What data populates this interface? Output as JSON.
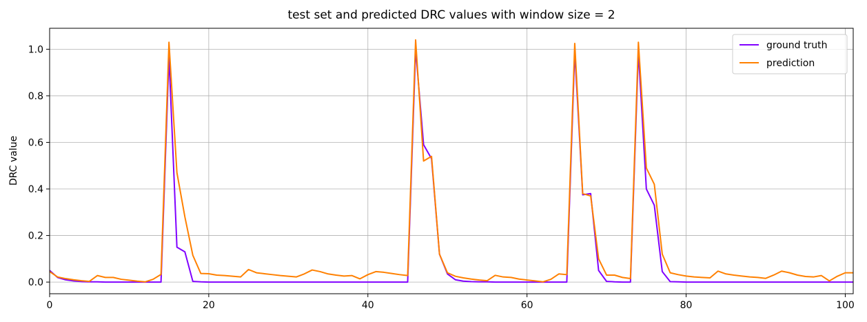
{
  "chart_data": {
    "type": "line",
    "title": "test set and predicted DRC values with window size = 2",
    "xlabel": "",
    "ylabel": "DRC value",
    "xlim": [
      0,
      101
    ],
    "ylim": [
      -0.05,
      1.09
    ],
    "xticks": [
      0,
      20,
      40,
      60,
      80,
      100
    ],
    "xtick_labels": [
      "0",
      "20",
      "40",
      "60",
      "80",
      "100"
    ],
    "yticks": [
      0.0,
      0.2,
      0.4,
      0.6,
      0.8,
      1.0
    ],
    "ytick_labels": [
      "0.0",
      "0.2",
      "0.4",
      "0.6",
      "0.8",
      "1.0"
    ],
    "grid": true,
    "legend_position": "top-right",
    "series": [
      {
        "name": "ground truth",
        "color": "#8000ff",
        "x": [
          0,
          1,
          2,
          3,
          4,
          5,
          6,
          7,
          8,
          9,
          10,
          11,
          12,
          13,
          14,
          15,
          16,
          17,
          18,
          19,
          20,
          21,
          22,
          23,
          24,
          25,
          26,
          27,
          28,
          29,
          30,
          31,
          32,
          33,
          34,
          35,
          36,
          37,
          38,
          39,
          40,
          41,
          42,
          43,
          44,
          45,
          46,
          47,
          48,
          49,
          50,
          51,
          52,
          53,
          54,
          55,
          56,
          57,
          58,
          59,
          60,
          61,
          62,
          63,
          64,
          65,
          66,
          67,
          68,
          69,
          70,
          71,
          72,
          73,
          74,
          75,
          76,
          77,
          78,
          79,
          80,
          81,
          82,
          83,
          84,
          85,
          86,
          87,
          88,
          89,
          90,
          91,
          92,
          93,
          94,
          95,
          96,
          97,
          98,
          99,
          100,
          101
        ],
        "values": [
          0.05,
          0.02,
          0.01,
          0.005,
          0.002,
          0.001,
          0.001,
          0,
          0,
          0,
          0,
          0,
          0,
          0,
          0,
          0.97,
          0.15,
          0.13,
          0.003,
          0.001,
          0,
          0,
          0,
          0,
          0,
          0,
          0,
          0,
          0,
          0,
          0,
          0,
          0,
          0,
          0,
          0,
          0,
          0,
          0,
          0,
          0,
          0,
          0,
          0,
          0,
          0,
          1.0,
          0.59,
          0.53,
          0.12,
          0.035,
          0.01,
          0.004,
          0.002,
          0.001,
          0.001,
          0,
          0,
          0,
          0,
          0,
          0,
          0,
          0,
          0,
          0,
          0.99,
          0.375,
          0.38,
          0.05,
          0.003,
          0.001,
          0,
          0,
          0.99,
          0.4,
          0.33,
          0.045,
          0.002,
          0.001,
          0,
          0,
          0,
          0,
          0,
          0,
          0,
          0,
          0,
          0,
          0,
          0,
          0,
          0,
          0,
          0,
          0,
          0,
          0,
          0,
          0,
          0
        ]
      },
      {
        "name": "prediction",
        "color": "#ff8000",
        "x": [
          0,
          1,
          2,
          3,
          4,
          5,
          6,
          7,
          8,
          9,
          10,
          11,
          12,
          13,
          14,
          15,
          16,
          17,
          18,
          19,
          20,
          21,
          22,
          23,
          24,
          25,
          26,
          27,
          28,
          29,
          30,
          31,
          32,
          33,
          34,
          35,
          36,
          37,
          38,
          39,
          40,
          41,
          42,
          43,
          44,
          45,
          46,
          47,
          48,
          49,
          50,
          51,
          52,
          53,
          54,
          55,
          56,
          57,
          58,
          59,
          60,
          61,
          62,
          63,
          64,
          65,
          66,
          67,
          68,
          69,
          70,
          71,
          72,
          73,
          74,
          75,
          76,
          77,
          78,
          79,
          80,
          81,
          82,
          83,
          84,
          85,
          86,
          87,
          88,
          89,
          90,
          91,
          92,
          93,
          94,
          95,
          96,
          97,
          98,
          99,
          100,
          101
        ],
        "values": [
          0.045,
          0.022,
          0.015,
          0.01,
          0.006,
          0.003,
          0.028,
          0.02,
          0.02,
          0.012,
          0.008,
          0.004,
          0.001,
          0.012,
          0.033,
          1.03,
          0.47,
          0.28,
          0.115,
          0.037,
          0.036,
          0.03,
          0.028,
          0.025,
          0.022,
          0.054,
          0.04,
          0.036,
          0.032,
          0.028,
          0.025,
          0.022,
          0.035,
          0.052,
          0.045,
          0.035,
          0.03,
          0.026,
          0.028,
          0.014,
          0.032,
          0.045,
          0.042,
          0.037,
          0.032,
          0.028,
          1.04,
          0.52,
          0.54,
          0.12,
          0.04,
          0.025,
          0.018,
          0.013,
          0.009,
          0.006,
          0.029,
          0.022,
          0.02,
          0.013,
          0.009,
          0.005,
          0.001,
          0.012,
          0.035,
          0.032,
          1.025,
          0.38,
          0.37,
          0.1,
          0.03,
          0.03,
          0.02,
          0.015,
          1.03,
          0.49,
          0.42,
          0.12,
          0.04,
          0.032,
          0.026,
          0.022,
          0.02,
          0.018,
          0.047,
          0.035,
          0.03,
          0.026,
          0.022,
          0.02,
          0.016,
          0.03,
          0.047,
          0.04,
          0.03,
          0.024,
          0.022,
          0.028,
          0.005,
          0.025,
          0.04,
          0.04
        ]
      }
    ]
  }
}
